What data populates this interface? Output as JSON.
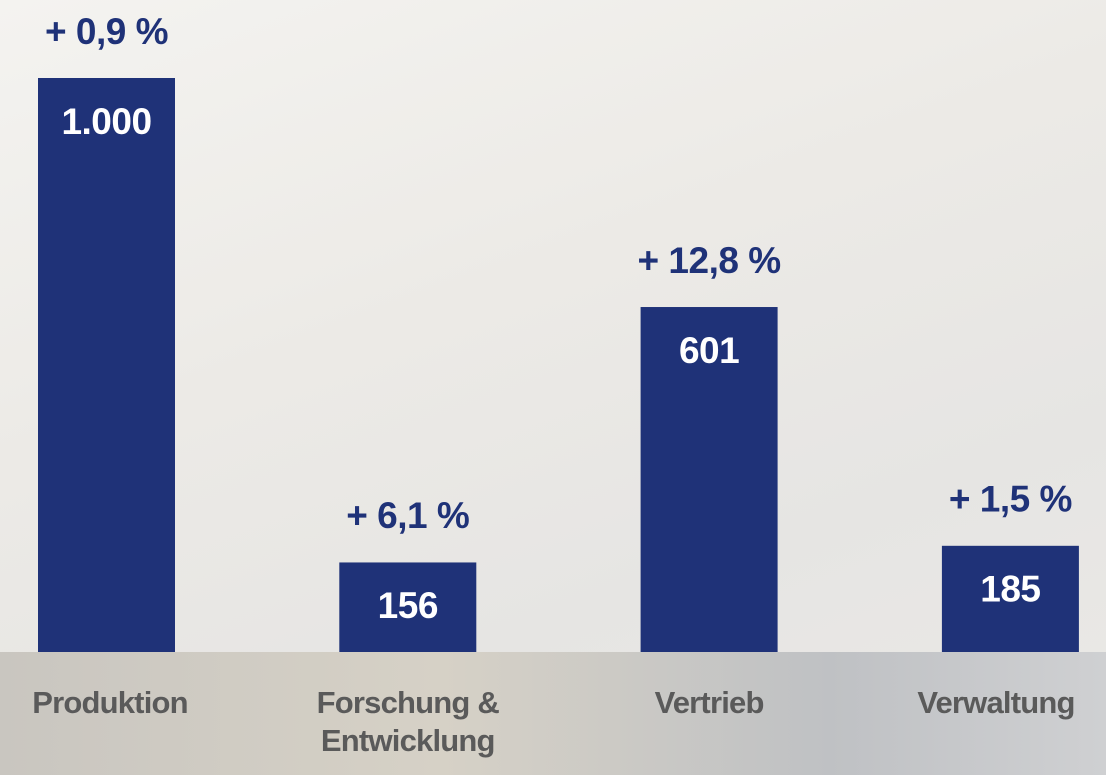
{
  "chart_data": {
    "type": "bar",
    "categories": [
      "Produktion",
      "Forschung & Entwicklung",
      "Vertrieb",
      "Verwaltung"
    ],
    "values": [
      1000,
      156,
      601,
      185
    ],
    "value_labels": [
      "1.000",
      "156",
      "601",
      "185"
    ],
    "annotations": [
      "+ 0,9 %",
      "+ 6,1 %",
      "+ 12,8 %",
      "+ 1,5 %"
    ],
    "color": "#1f3278",
    "ylim": [
      0,
      1000
    ]
  }
}
